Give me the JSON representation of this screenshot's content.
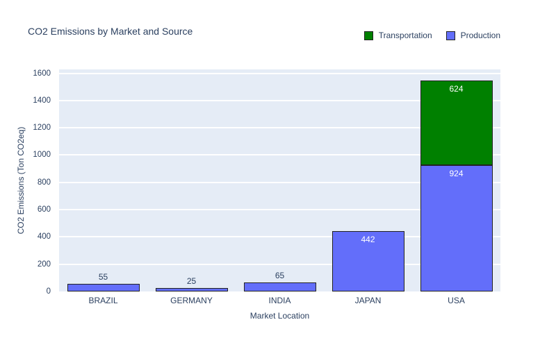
{
  "title": "CO2 Emissions by Market and Source",
  "colors": {
    "text": "#2a3f5f",
    "plot_background": "#e5ecf6",
    "gridline": "#ffffff",
    "production": "#636efa",
    "transportation": "#008000",
    "bar_border": "#222222",
    "inside_label_text": "#ffffff"
  },
  "legend": {
    "items": [
      {
        "label": "Transportation",
        "color": "#008000"
      },
      {
        "label": "Production",
        "color": "#636efa"
      }
    ]
  },
  "chart_data": {
    "type": "bar",
    "stacked": true,
    "title": "CO2 Emissions by Market and Source",
    "xlabel": "Market Location",
    "ylabel": "CO2 Emissions (Ton CO2eq)",
    "categories": [
      "BRAZIL",
      "GERMANY",
      "INDIA",
      "JAPAN",
      "USA"
    ],
    "series": [
      {
        "name": "Production",
        "color": "#636efa",
        "values": [
          55,
          25,
          65,
          442,
          924
        ]
      },
      {
        "name": "Transportation",
        "color": "#008000",
        "values": [
          0,
          0,
          0,
          0,
          624
        ]
      }
    ],
    "totals": [
      55,
      25,
      65,
      442,
      1548
    ],
    "yticks": [
      0,
      200,
      400,
      600,
      800,
      1000,
      1200,
      1400,
      1600
    ],
    "ylim": [
      0,
      1628
    ],
    "grid": true,
    "legend_position": "top-right"
  }
}
